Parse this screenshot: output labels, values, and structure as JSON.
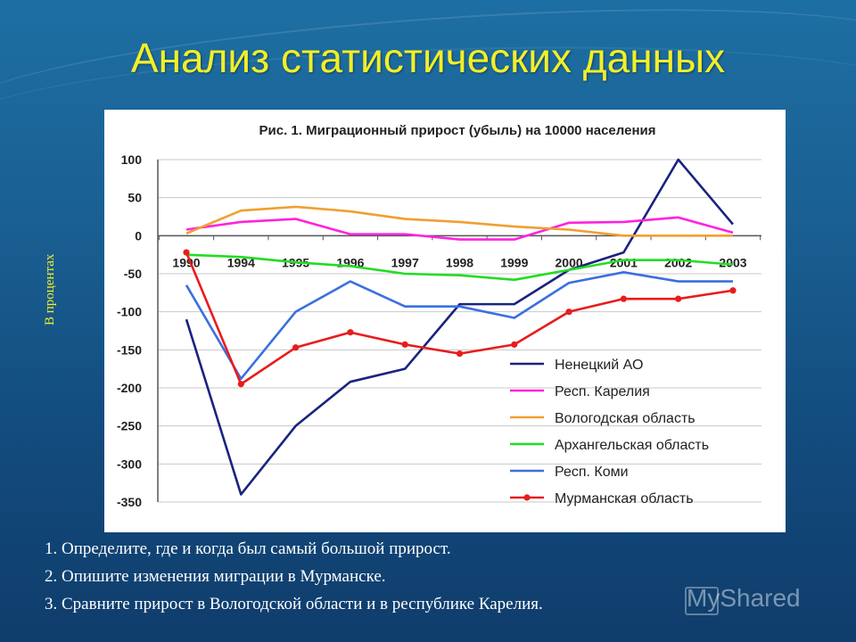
{
  "slide": {
    "title": "Анализ статистических данных",
    "side_label": "В процентах",
    "questions": [
      "1. Определите, где и когда был  самый большой прирост.",
      "2. Опишите изменения миграции в Мурманске.",
      "3. Сравните прирост в Вологодской области и в республике Карелия."
    ],
    "watermark": "MyShared",
    "colors": {
      "title": "#f2ef28",
      "background": "#1a5f92"
    }
  },
  "chart_data": {
    "type": "line",
    "title": "Рис. 1. Миграционный прирост (убыль) на 10000 населения",
    "categories": [
      "1990",
      "1994",
      "1995",
      "1996",
      "1997",
      "1998",
      "1999",
      "2000",
      "2001",
      "2002",
      "2003"
    ],
    "ylim": [
      -350,
      100
    ],
    "yticks": [
      100,
      50,
      0,
      -50,
      -100,
      -150,
      -200,
      -250,
      -300,
      -350
    ],
    "grid": true,
    "legend_position": "bottom-right",
    "series": [
      {
        "name": "Ненецкий АО",
        "color": "#1a237e",
        "marker": false,
        "values": [
          -110,
          -340,
          -250,
          -192,
          -175,
          -90,
          -90,
          -45,
          -22,
          100,
          15
        ]
      },
      {
        "name": "Респ. Карелия",
        "color": "#ff22dd",
        "marker": false,
        "values": [
          8,
          18,
          22,
          2,
          2,
          -5,
          -5,
          17,
          18,
          24,
          4
        ]
      },
      {
        "name": "Вологодская область",
        "color": "#f0a030",
        "marker": false,
        "values": [
          3,
          33,
          38,
          32,
          22,
          18,
          12,
          8,
          0,
          0,
          0
        ]
      },
      {
        "name": "Архангельская область",
        "color": "#22dd22",
        "marker": false,
        "values": [
          -25,
          -28,
          -35,
          -40,
          -50,
          -52,
          -58,
          -45,
          -32,
          -32,
          -38
        ]
      },
      {
        "name": "Респ. Коми",
        "color": "#3a70e0",
        "marker": false,
        "values": [
          -65,
          -188,
          -100,
          -60,
          -93,
          -93,
          -108,
          -62,
          -48,
          -60,
          -60
        ]
      },
      {
        "name": "Мурманская область",
        "color": "#e81c1c",
        "marker": true,
        "values": [
          -22,
          -195,
          -147,
          -127,
          -143,
          -155,
          -143,
          -100,
          -83,
          -83,
          -72
        ]
      }
    ]
  }
}
